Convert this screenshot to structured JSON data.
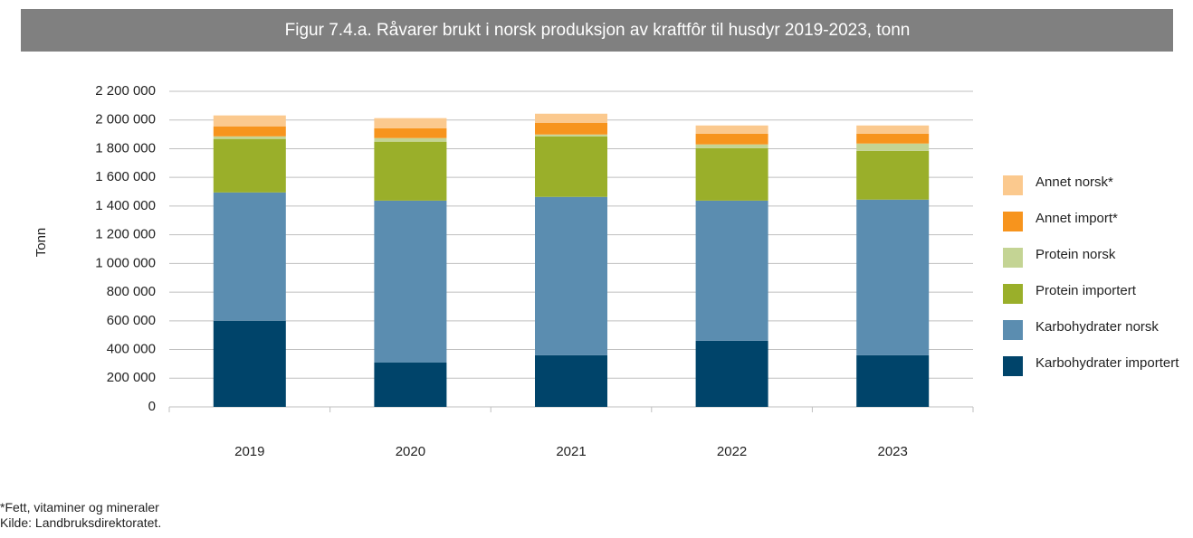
{
  "chart_data": {
    "type": "stacked-bar",
    "title": "Figur 7.4.a. Råvarer brukt i norsk produksjon av kraftfôr til husdyr 2019-2023, tonn",
    "ylabel": "Tonn",
    "categories": [
      "2019",
      "2020",
      "2021",
      "2022",
      "2023"
    ],
    "series": [
      {
        "name": "Karbohydrater importert",
        "color": "#00446a",
        "values": [
          600000,
          309000,
          360000,
          461000,
          360000
        ]
      },
      {
        "name": "Karbohydrater norsk",
        "color": "#5b8db0",
        "values": [
          895000,
          1129000,
          1104000,
          977000,
          1085000
        ]
      },
      {
        "name": "Protein importert",
        "color": "#9aaf2a",
        "values": [
          373000,
          411000,
          422000,
          366000,
          340000
        ]
      },
      {
        "name": "Protein norsk",
        "color": "#c4d494",
        "values": [
          18000,
          25000,
          13000,
          26000,
          51000
        ]
      },
      {
        "name": "Annet import*",
        "color": "#f7941d",
        "values": [
          70000,
          69000,
          82000,
          75000,
          69000
        ]
      },
      {
        "name": "Annet norsk*",
        "color": "#fbc98e",
        "values": [
          76000,
          70000,
          63000,
          57000,
          57000
        ]
      }
    ],
    "ylim": [
      0,
      2200000
    ],
    "yticks": [
      0,
      {
        "value": 200000,
        "label": "200 000"
      },
      {
        "value": 400000,
        "label": "400 000"
      },
      {
        "value": 600000,
        "label": "600 000"
      },
      {
        "value": 800000,
        "label": "800 000"
      },
      {
        "value": 1000000,
        "label": "1 000 000"
      },
      {
        "value": 1200000,
        "label": "1 200 000"
      },
      {
        "value": 1400000,
        "label": "1 400 000"
      },
      {
        "value": 1600000,
        "label": "1 600 000"
      },
      {
        "value": 1800000,
        "label": "1 800 000"
      },
      {
        "value": 2000000,
        "label": "2 000 000"
      },
      {
        "value": 2200000,
        "label": "2 200 000"
      }
    ],
    "grid": true,
    "legend": "right",
    "note": "*Fett, vitaminer og mineraler",
    "source": "Kilde: Landbruksdirektoratet."
  }
}
